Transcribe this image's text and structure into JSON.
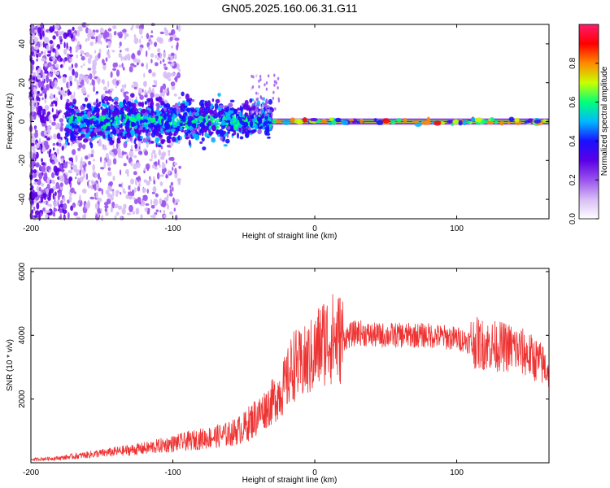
{
  "figure": {
    "title": "GN05.2025.160.06.31.G11"
  },
  "colors": {
    "snr_line": "#ee3333",
    "colormap": [
      "#ffffff",
      "#d7bdf5",
      "#9a52ee",
      "#5a00e6",
      "#1a10ff",
      "#00b8ff",
      "#00ff7a",
      "#c9ff00",
      "#ff8a00",
      "#ff0000",
      "#ff1a6e"
    ]
  },
  "chart_data": [
    {
      "type": "heatmap",
      "xlabel": "Height of straight line (km)",
      "ylabel": "Frequency (Hz)",
      "xlim": [
        -200,
        165
      ],
      "ylim": [
        -50,
        50
      ],
      "xticks": [
        -200,
        -100,
        0,
        100
      ],
      "yticks": [
        -40,
        -20,
        0,
        20,
        40
      ],
      "colorbar": {
        "label": "Normalized spectral amplitude",
        "range": [
          0,
          1
        ],
        "ticks": [
          0.0,
          0.2,
          0.4,
          0.6,
          0.8
        ]
      },
      "features": {
        "noise_scatter_range_km": [
          -200,
          -95
        ],
        "ridge_frequency_hz": 0,
        "ridge_start_km": -175,
        "strong_ridge_start_km": -30
      }
    },
    {
      "type": "line",
      "xlabel": "Height of straight line (km)",
      "ylabel": "SNR (10 * v/v)",
      "xlim": [
        -200,
        165
      ],
      "ylim": [
        0,
        6100
      ],
      "xticks": [
        -200,
        -100,
        0,
        100
      ],
      "yticks": [
        2000,
        4000,
        6000
      ],
      "series": [
        {
          "x": [
            -200,
            -180,
            -160,
            -140,
            -120,
            -100,
            -80,
            -60,
            -50,
            -40,
            -30,
            -20,
            -15,
            -10,
            0,
            5,
            10,
            20,
            30,
            40,
            60,
            80,
            100,
            120,
            140,
            150,
            160,
            165
          ],
          "y": [
            100,
            150,
            250,
            350,
            450,
            600,
            750,
            900,
            1100,
            1500,
            1900,
            2500,
            3100,
            3000,
            3400,
            3800,
            3900,
            3900,
            4100,
            4000,
            4000,
            4000,
            3900,
            3700,
            3600,
            3400,
            3100,
            2900
          ]
        }
      ]
    }
  ]
}
